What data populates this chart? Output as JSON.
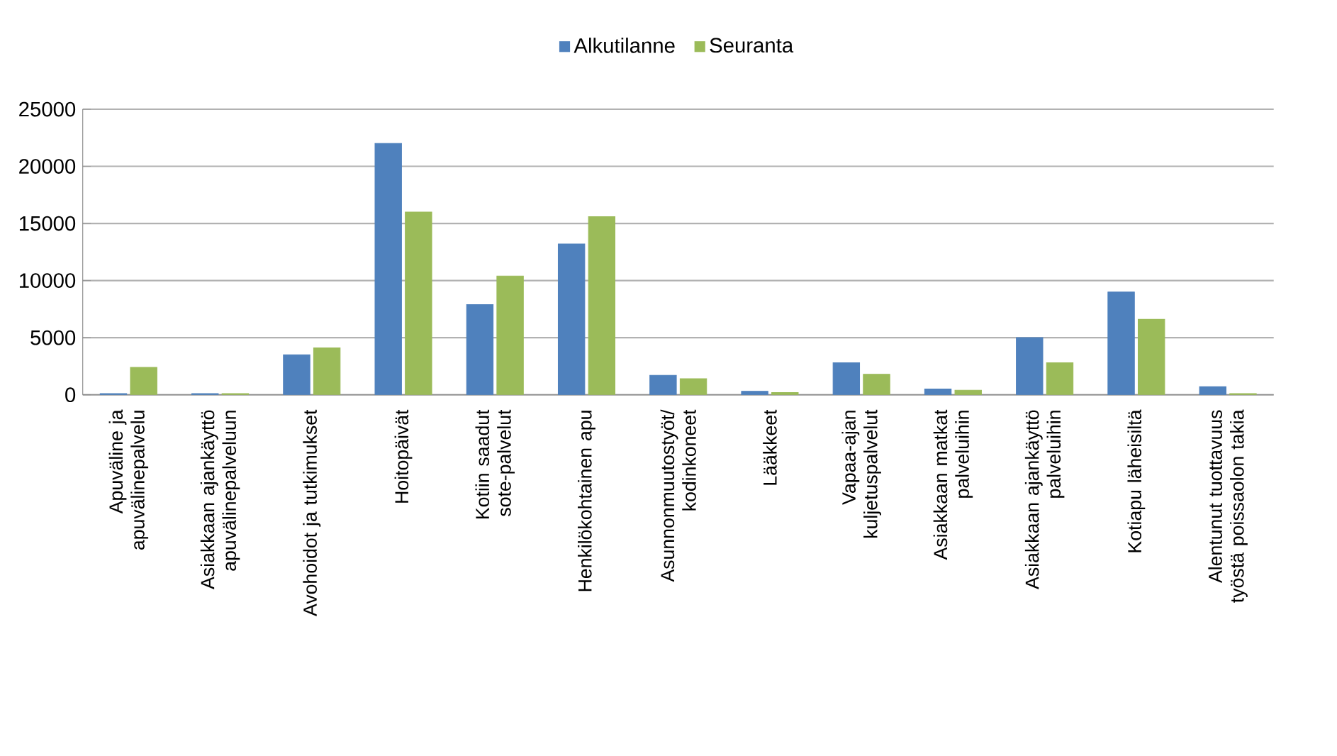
{
  "chart_data": {
    "type": "bar",
    "categories": [
      "Apuväline ja apuvälinepalvelu",
      "Asiakkaan ajankäyttö apuvälinepalveluun",
      "Avohoidot ja tutkimukset",
      "Hoitopäivät",
      "Kotiin saadut sote-palvelut",
      "Henkilökohtainen apu",
      "Asunnonmuutostyöt/ kodinkoneet",
      "Lääkkeet",
      "Vapaa-ajan kuljetuspalvelut",
      "Asiakkaan matkat palveluihin",
      "Asiakkaan ajankäyttö palveluihin",
      "Kotiapu läheisiltä",
      "Alentunut tuottavuus työstä poissaolon takia"
    ],
    "series": [
      {
        "name": "Alkutilanne",
        "color": "#4f81bd",
        "values": [
          100,
          100,
          3500,
          22000,
          7900,
          13200,
          1700,
          300,
          2800,
          500,
          5000,
          9000,
          700
        ]
      },
      {
        "name": "Seuranta",
        "color": "#9bbb59",
        "values": [
          2400,
          100,
          4100,
          16000,
          10400,
          15600,
          1400,
          200,
          1800,
          400,
          2800,
          6600,
          100
        ]
      }
    ],
    "ylim": [
      0,
      25000
    ],
    "yticks": [
      0,
      5000,
      10000,
      15000,
      20000,
      25000
    ],
    "grid": "y",
    "legend": "top"
  }
}
